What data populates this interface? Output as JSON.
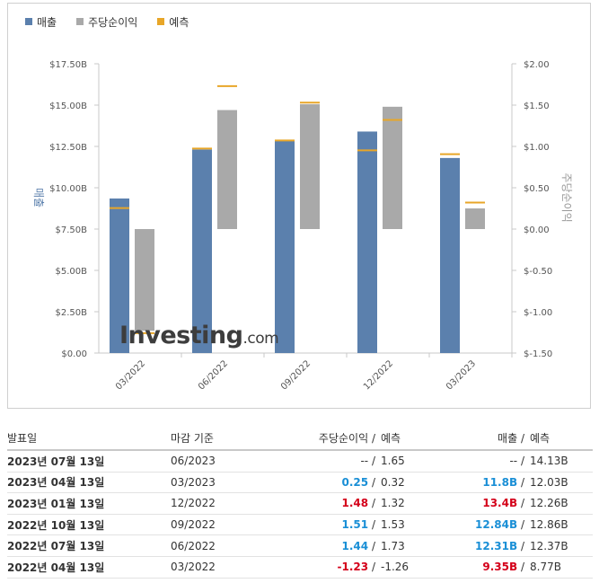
{
  "legend": [
    {
      "label": "매출",
      "color": "#5b80ad"
    },
    {
      "label": "주당순이익",
      "color": "#a9a9a9"
    },
    {
      "label": "예측",
      "color": "#e8a628"
    }
  ],
  "chart_data": {
    "type": "bar",
    "categories": [
      "03/2022",
      "06/2022",
      "09/2022",
      "12/2022",
      "03/2023"
    ],
    "series": [
      {
        "name": "매출",
        "values": [
          9.35,
          12.31,
          12.84,
          13.4,
          11.8
        ],
        "axis": "left"
      },
      {
        "name": "주당순이익",
        "values": [
          -1.23,
          1.44,
          1.51,
          1.48,
          0.25
        ],
        "axis": "right"
      }
    ],
    "forecast": {
      "name": "예측",
      "revenue": [
        8.77,
        12.37,
        12.86,
        12.26,
        12.03
      ],
      "eps": [
        -1.26,
        1.73,
        1.53,
        1.32,
        0.32
      ]
    },
    "left_axis": {
      "label": "매출",
      "ylim": [
        0,
        17.5
      ],
      "ticks": [
        "$0.00",
        "$2.50B",
        "$5.00B",
        "$7.50B",
        "$10.00B",
        "$12.50B",
        "$15.00B",
        "$17.50B"
      ]
    },
    "right_axis": {
      "label": "주당순이익",
      "ylim": [
        -1.5,
        2.0
      ],
      "ticks": [
        "$-1.50",
        "$-1.00",
        "$-0.50",
        "$0.00",
        "$0.50",
        "$1.00",
        "$1.50",
        "$2.00"
      ]
    },
    "colors": {
      "revenue": "#5b80ad",
      "eps": "#a9a9a9",
      "forecast": "#e8a628"
    },
    "legend_position": "top-left",
    "grid": false
  },
  "watermark": {
    "brand": "Investing",
    "suffix": ".com"
  },
  "table": {
    "headers": [
      "발표일",
      "마감 기준",
      "주당순이익",
      "/",
      "예측",
      "매출",
      "/",
      "예측"
    ],
    "rows": [
      {
        "date": "2023년 07월 13일",
        "period": "06/2023",
        "eps": "--",
        "eps_class": "dash",
        "eps_fc": "1.65",
        "rev": "--",
        "rev_class": "dash",
        "rev_fc": "14.13B"
      },
      {
        "date": "2023년 04월 13일",
        "period": "03/2023",
        "eps": "0.25",
        "eps_class": "pos",
        "eps_fc": "0.32",
        "rev": "11.8B",
        "rev_class": "pos",
        "rev_fc": "12.03B"
      },
      {
        "date": "2023년 01월 13일",
        "period": "12/2022",
        "eps": "1.48",
        "eps_class": "neg",
        "eps_fc": "1.32",
        "rev": "13.4B",
        "rev_class": "neg",
        "rev_fc": "12.26B"
      },
      {
        "date": "2022년 10월 13일",
        "period": "09/2022",
        "eps": "1.51",
        "eps_class": "pos",
        "eps_fc": "1.53",
        "rev": "12.84B",
        "rev_class": "pos",
        "rev_fc": "12.86B"
      },
      {
        "date": "2022년 07월 13일",
        "period": "06/2022",
        "eps": "1.44",
        "eps_class": "pos",
        "eps_fc": "1.73",
        "rev": "12.31B",
        "rev_class": "pos",
        "rev_fc": "12.37B"
      },
      {
        "date": "2022년 04월 13일",
        "period": "03/2022",
        "eps": "-1.23",
        "eps_class": "neg",
        "eps_fc": "-1.26",
        "rev": "9.35B",
        "rev_class": "neg",
        "rev_fc": "8.77B"
      }
    ]
  }
}
